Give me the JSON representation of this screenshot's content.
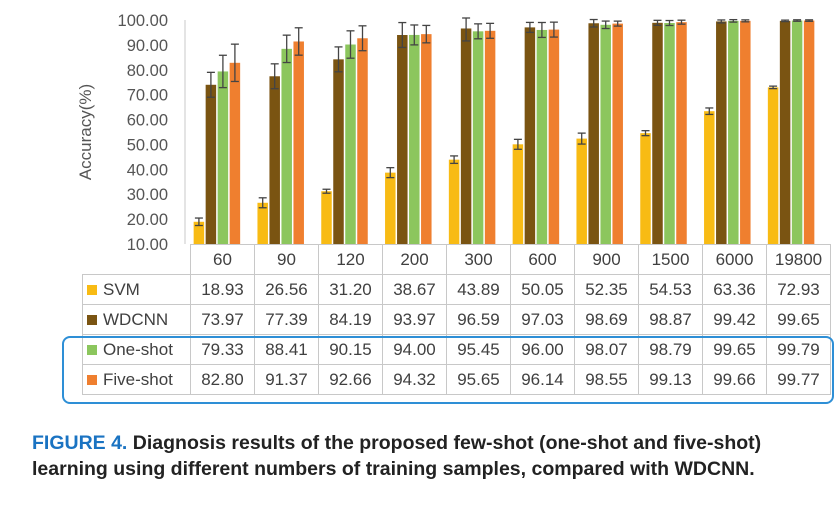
{
  "colors": {
    "SVM": "#f8bb14",
    "WDCNN": "#7a5412",
    "One-shot": "#8cc65d",
    "Five-shot": "#ef7f2f",
    "highlight": "#2e8fd6",
    "caption_label": "#1a73c2"
  },
  "chart_data": {
    "type": "bar",
    "ylabel": "Accuracy(%)",
    "ylim": [
      10,
      100
    ],
    "yticks": [
      "10.00",
      "20.00",
      "30.00",
      "40.00",
      "50.00",
      "60.00",
      "70.00",
      "80.00",
      "90.00",
      "100.00"
    ],
    "categories": [
      "60",
      "90",
      "120",
      "200",
      "300",
      "600",
      "900",
      "1500",
      "6000",
      "19800"
    ],
    "series": [
      {
        "name": "SVM",
        "values": [
          18.93,
          26.56,
          31.2,
          38.67,
          43.89,
          50.05,
          52.35,
          54.53,
          63.36,
          72.93
        ],
        "display": [
          "18.93",
          "26.56",
          "31.20",
          "38.67",
          "43.89",
          "50.05",
          "52.35",
          "54.53",
          "63.36",
          "72.93"
        ],
        "errors": [
          1.5,
          2.0,
          0.8,
          2.0,
          1.5,
          2.0,
          2.2,
          1.0,
          1.3,
          0.5
        ]
      },
      {
        "name": "WDCNN",
        "values": [
          73.97,
          77.39,
          84.19,
          93.97,
          96.59,
          97.03,
          98.69,
          98.87,
          99.42,
          99.65
        ],
        "display": [
          "73.97",
          "77.39",
          "84.19",
          "93.97",
          "96.59",
          "97.03",
          "98.69",
          "98.87",
          "99.42",
          "99.65"
        ],
        "errors": [
          5.0,
          5.0,
          5.0,
          5.0,
          5.0,
          2.0,
          1.5,
          1.0,
          0.6,
          0.3
        ]
      },
      {
        "name": "One-shot",
        "values": [
          79.33,
          88.41,
          90.15,
          94.0,
          95.45,
          96.0,
          98.07,
          98.79,
          99.65,
          99.79
        ],
        "display": [
          "79.33",
          "88.41",
          "90.15",
          "94.00",
          "95.45",
          "96.00",
          "98.07",
          "98.79",
          "99.65",
          "99.79"
        ],
        "errors": [
          6.5,
          5.5,
          5.5,
          4.0,
          3.0,
          3.0,
          1.5,
          1.0,
          0.5,
          0.3
        ]
      },
      {
        "name": "Five-shot",
        "values": [
          82.8,
          91.37,
          92.66,
          94.32,
          95.65,
          96.14,
          98.55,
          99.13,
          99.66,
          99.77
        ],
        "display": [
          "82.80",
          "91.37",
          "92.66",
          "94.32",
          "95.65",
          "96.14",
          "98.55",
          "99.13",
          "99.66",
          "99.77"
        ],
        "errors": [
          7.5,
          5.5,
          5.0,
          3.5,
          3.0,
          3.0,
          1.0,
          0.8,
          0.4,
          0.3
        ]
      }
    ],
    "grid": false,
    "legend": "table-below"
  },
  "caption": {
    "label": "FIGURE 4.",
    "text": "Diagnosis results of the proposed few-shot (one-shot and five-shot) learning using different numbers of training samples, compared with WDCNN."
  }
}
